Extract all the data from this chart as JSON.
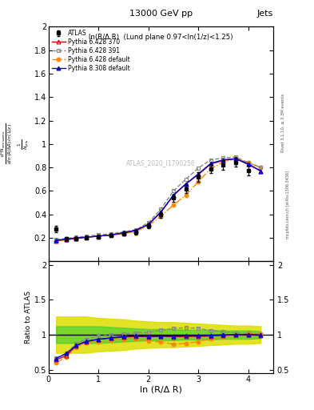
{
  "title_top": "13000 GeV pp",
  "title_right": "Jets",
  "annotation": "ln(R/Δ R)  (Lund plane 0.97<ln(1/z)<1.25)",
  "watermark": "ATLAS_2020_I1790256",
  "rivet_label": "Rivet 3.1.10, ≥ 3.3M events",
  "arxiv_label": "mcplots.cern.ch [arXiv:1306.3436]",
  "xlabel": "ln (R/Δ R)",
  "ylabel_main": "1/N_jets dln(R/ΔR) ln(1/z)",
  "ylabel_ratio": "Ratio to ATLAS",
  "xdata": [
    0.15,
    0.35,
    0.55,
    0.75,
    1.0,
    1.25,
    1.5,
    1.75,
    2.0,
    2.25,
    2.5,
    2.75,
    3.0,
    3.25,
    3.5,
    3.75,
    4.0,
    4.25
  ],
  "atlas_y": [
    0.275,
    0.195,
    0.195,
    0.2,
    0.21,
    0.22,
    0.235,
    0.25,
    0.305,
    0.395,
    0.54,
    0.62,
    0.72,
    0.79,
    0.82,
    0.845,
    0.775,
    null
  ],
  "atlas_yerr": [
    0.025,
    0.015,
    0.015,
    0.015,
    0.015,
    0.015,
    0.015,
    0.02,
    0.02,
    0.025,
    0.03,
    0.04,
    0.04,
    0.04,
    0.04,
    0.04,
    0.04,
    null
  ],
  "p6_370_y": [
    0.175,
    0.185,
    0.195,
    0.205,
    0.215,
    0.225,
    0.24,
    0.265,
    0.315,
    0.42,
    0.56,
    0.66,
    0.74,
    0.83,
    0.86,
    0.875,
    0.825,
    0.77
  ],
  "p6_391_y": [
    0.185,
    0.195,
    0.205,
    0.215,
    0.225,
    0.235,
    0.25,
    0.27,
    0.33,
    0.445,
    0.6,
    0.7,
    0.795,
    0.865,
    0.88,
    0.89,
    0.84,
    0.8
  ],
  "p6_def_y": [
    0.175,
    0.185,
    0.195,
    0.205,
    0.215,
    0.225,
    0.235,
    0.255,
    0.305,
    0.385,
    0.48,
    0.565,
    0.68,
    0.79,
    0.845,
    0.875,
    0.84,
    0.8
  ],
  "p8_def_y": [
    0.18,
    0.19,
    0.2,
    0.205,
    0.215,
    0.225,
    0.245,
    0.265,
    0.315,
    0.42,
    0.565,
    0.66,
    0.745,
    0.835,
    0.865,
    0.875,
    0.83,
    0.77
  ],
  "ratio_p6_370": [
    0.64,
    0.7,
    0.84,
    0.9,
    0.935,
    0.95,
    0.965,
    0.975,
    0.97,
    0.975,
    0.97,
    0.975,
    0.975,
    0.98,
    0.99,
    1.0,
    1.0,
    0.99
  ],
  "ratio_p6_391": [
    0.67,
    0.73,
    0.875,
    0.935,
    0.975,
    1.0,
    1.015,
    1.025,
    1.03,
    1.065,
    1.09,
    1.1,
    1.09,
    1.06,
    1.04,
    1.025,
    1.02,
    1.01
  ],
  "ratio_p6_def": [
    0.6,
    0.68,
    0.82,
    0.88,
    0.9,
    0.92,
    0.935,
    0.945,
    0.91,
    0.895,
    0.865,
    0.875,
    0.9,
    0.945,
    0.97,
    0.99,
    1.01,
    1.01
  ],
  "ratio_p8_def": [
    0.66,
    0.73,
    0.845,
    0.905,
    0.935,
    0.955,
    0.975,
    0.985,
    0.975,
    0.98,
    0.98,
    0.985,
    0.985,
    0.993,
    0.998,
    1.0,
    1.005,
    0.995
  ],
  "band_green_lo": [
    0.88,
    0.88,
    0.88,
    0.88,
    0.88,
    0.89,
    0.9,
    0.91,
    0.92,
    0.92,
    0.92,
    0.93,
    0.93,
    0.93,
    0.94,
    0.94,
    0.94,
    0.95
  ],
  "band_green_hi": [
    1.12,
    1.12,
    1.12,
    1.12,
    1.12,
    1.11,
    1.1,
    1.09,
    1.08,
    1.08,
    1.08,
    1.07,
    1.07,
    1.07,
    1.06,
    1.06,
    1.06,
    1.05
  ],
  "band_yellow_lo": [
    0.74,
    0.74,
    0.74,
    0.74,
    0.76,
    0.77,
    0.78,
    0.8,
    0.81,
    0.82,
    0.82,
    0.83,
    0.84,
    0.85,
    0.86,
    0.87,
    0.87,
    0.88
  ],
  "band_yellow_hi": [
    1.26,
    1.26,
    1.26,
    1.26,
    1.24,
    1.23,
    1.22,
    1.2,
    1.19,
    1.18,
    1.18,
    1.17,
    1.16,
    1.15,
    1.14,
    1.13,
    1.13,
    1.12
  ],
  "color_p6_370": "#cc0000",
  "color_p6_391": "#888888",
  "color_p6_def": "#ff8800",
  "color_p8_def": "#0000cc",
  "color_atlas": "#000000",
  "color_green": "#33cc33",
  "color_yellow": "#dddd00",
  "ylim_main": [
    0.0,
    2.0
  ],
  "ylim_ratio": [
    0.45,
    2.05
  ],
  "xlim": [
    0.0,
    4.5
  ],
  "main_yticks": [
    0.0,
    0.2,
    0.4,
    0.6,
    0.8,
    1.0,
    1.2,
    1.4,
    1.6,
    1.8,
    2.0
  ],
  "ratio_yticks": [
    0.5,
    1.0,
    1.5,
    2.0
  ],
  "main_yticklabels": [
    "",
    "0.2",
    "0.4",
    "0.6",
    "0.8",
    "1",
    "1.2",
    "1.4",
    "1.6",
    "1.8",
    "2"
  ],
  "ratio_yticklabels": [
    "0.5",
    "1",
    "1.5",
    "2"
  ]
}
